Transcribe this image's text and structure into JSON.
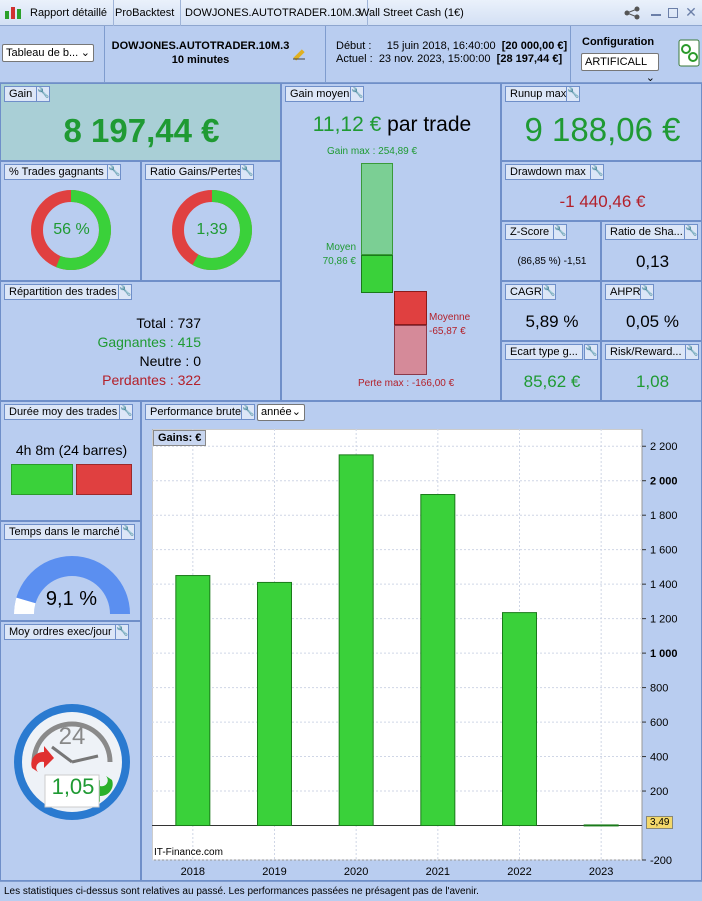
{
  "titlebar": {
    "tabs": [
      "Rapport détaillé",
      "ProBacktest",
      "DOWJONES.AUTOTRADER.10M.3",
      "Wall Street Cash (1€)"
    ]
  },
  "header": {
    "view_select": "Tableau de b...",
    "system_name": "DOWJONES.AUTOTRADER.10M.3",
    "timeframe": "10 minutes",
    "start_label": "Début :",
    "start_date": "15 juin 2018, 16:40:00",
    "start_value": "[20 000,00 €]",
    "current_label": "Actuel :",
    "current_date": "23 nov. 2023, 15:00:00",
    "current_value": "[28 197,44 €]",
    "config_label": "Configuration",
    "config_select": "ARTIFICALL"
  },
  "gain": {
    "title": "Gain",
    "value": "8 197,44 €"
  },
  "gain_moyen": {
    "title": "Gain moyen",
    "value": "11,12 €",
    "suffix": "par trade",
    "gain_max": "Gain max : 254,89 €",
    "moyen_label": "Moyen",
    "moyen_value": "70,86 €",
    "moyenne_label": "Moyenne",
    "moyenne_value": "-65,87 €",
    "perte_max": "Perte max : -166,00 €"
  },
  "runup": {
    "title": "Runup max",
    "value": "9 188,06 €"
  },
  "drawdown": {
    "title": "Drawdown max",
    "value": "-1 440,46 €"
  },
  "trades_gagnants": {
    "title": "% Trades gagnants",
    "value": "56 %",
    "fraction": 0.56
  },
  "ratio": {
    "title": "Ratio Gains/Pertes",
    "value": "1,39",
    "fraction": 0.58
  },
  "zscore": {
    "title": "Z-Score",
    "value": "(86,85 %) -1,51"
  },
  "sharpe": {
    "title": "Ratio de Sha...",
    "value": "0,13"
  },
  "cagr": {
    "title": "CAGR",
    "value": "5,89 %"
  },
  "ahpr": {
    "title": "AHPR",
    "value": "0,05 %"
  },
  "ecart": {
    "title": "Ecart type g...",
    "value": "85,62 €"
  },
  "risk": {
    "title": "Risk/Reward...",
    "value": "1,08"
  },
  "repartition": {
    "title": "Répartition des trades",
    "total": "Total : 737",
    "gagnantes": "Gagnantes : 415",
    "neutre": "Neutre : 0",
    "perdantes": "Perdantes : 322"
  },
  "duree": {
    "title": "Durée moy des trades",
    "value": "4h 8m (24 barres)"
  },
  "temps": {
    "title": "Temps dans le marché",
    "value": "9,1 %",
    "fraction": 0.091
  },
  "ordres": {
    "title": "Moy ordres exec/jour",
    "value": "1,05",
    "clock": "24"
  },
  "perf": {
    "title": "Performance brute",
    "period_select": "année",
    "legend": "Gains: €",
    "watermark": "IT-Finance.com",
    "last_value": "3,49"
  },
  "chart_data": {
    "type": "bar",
    "categories": [
      "2018",
      "2019",
      "2020",
      "2021",
      "2022",
      "2023"
    ],
    "values": [
      1450,
      1410,
      2150,
      1920,
      1235,
      3.49
    ],
    "ylim": [
      -200,
      2300
    ],
    "yticks": [
      -200,
      200,
      400,
      600,
      800,
      1000,
      1200,
      1400,
      1600,
      1800,
      2000,
      2200
    ],
    "yticklabels": [
      "-200",
      "200",
      "400",
      "600",
      "800",
      "1 000",
      "1 200",
      "1 400",
      "1 600",
      "1 800",
      "2 000",
      "2 200"
    ],
    "grid": true
  },
  "footer": "Les statistiques ci-dessus sont relatives au passé. Les performances passées ne présagent pas de l'avenir.",
  "colors": {
    "green": "#3ad13a",
    "red": "#e04040",
    "accent": "#1f9a33"
  }
}
